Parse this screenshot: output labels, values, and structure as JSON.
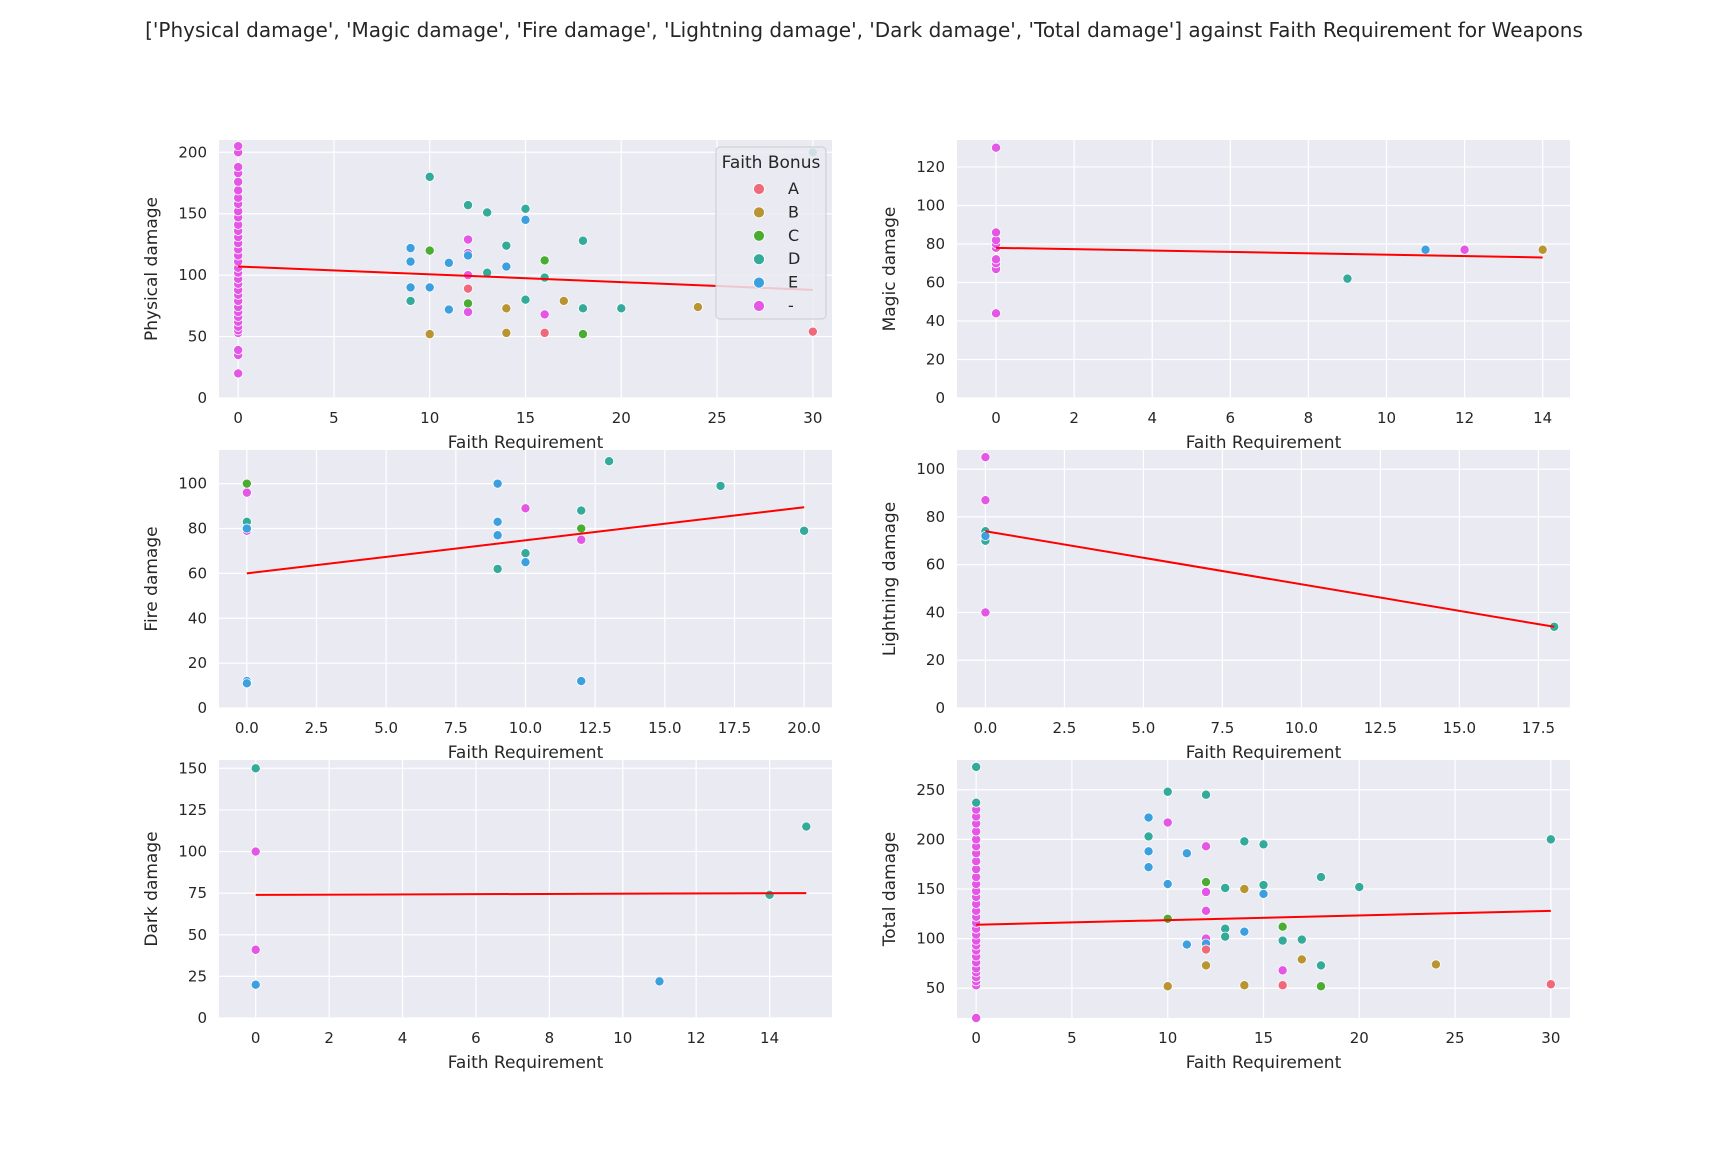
{
  "figure": {
    "title": "['Physical damage', 'Magic damage', 'Fire damage', 'Lightning damage', 'Dark damage', 'Total damage'] against Faith Requirement for Weapons"
  },
  "legend": {
    "title": "Faith Bonus",
    "entries": [
      {
        "label": "A",
        "color": "#f0697a"
      },
      {
        "label": "B",
        "color": "#b89433"
      },
      {
        "label": "C",
        "color": "#4aad32"
      },
      {
        "label": "D",
        "color": "#33aa9a"
      },
      {
        "label": "E",
        "color": "#3b9fe0"
      },
      {
        "label": "-",
        "color": "#e356e6"
      }
    ]
  },
  "chart_data": [
    {
      "type": "scatter",
      "xlabel": "Faith Requirement",
      "ylabel": "Physical damage",
      "xlim": [
        -1,
        31
      ],
      "ylim": [
        0,
        210
      ],
      "xticks": [
        0,
        5,
        10,
        15,
        20,
        25,
        30
      ],
      "yticks": [
        0,
        50,
        100,
        150,
        200
      ],
      "grid": true,
      "legend_position": "upper right",
      "trend_line": [
        [
          0,
          107
        ],
        [
          30,
          88
        ]
      ],
      "points": {
        "-": [
          [
            0,
            20
          ],
          [
            0,
            35
          ],
          [
            0,
            39
          ],
          [
            0,
            53
          ],
          [
            0,
            55
          ],
          [
            0,
            58
          ],
          [
            0,
            62
          ],
          [
            0,
            66
          ],
          [
            0,
            70
          ],
          [
            0,
            74
          ],
          [
            0,
            79
          ],
          [
            0,
            84
          ],
          [
            0,
            88
          ],
          [
            0,
            93
          ],
          [
            0,
            97
          ],
          [
            0,
            102
          ],
          [
            0,
            106
          ],
          [
            0,
            111
          ],
          [
            0,
            116
          ],
          [
            0,
            121
          ],
          [
            0,
            126
          ],
          [
            0,
            131
          ],
          [
            0,
            136
          ],
          [
            0,
            141
          ],
          [
            0,
            147
          ],
          [
            0,
            152
          ],
          [
            0,
            158
          ],
          [
            0,
            163
          ],
          [
            0,
            169
          ],
          [
            0,
            176
          ],
          [
            0,
            183
          ],
          [
            0,
            188
          ],
          [
            0,
            200
          ],
          [
            0,
            205
          ],
          [
            12,
            129
          ],
          [
            12,
            118
          ],
          [
            12,
            100
          ],
          [
            12,
            70
          ],
          [
            16,
            68
          ]
        ],
        "A": [
          [
            12,
            89
          ],
          [
            16,
            53
          ],
          [
            30,
            54
          ]
        ],
        "B": [
          [
            10,
            52
          ],
          [
            14,
            53
          ],
          [
            14,
            73
          ],
          [
            17,
            79
          ],
          [
            24,
            74
          ]
        ],
        "C": [
          [
            10,
            120
          ],
          [
            12,
            77
          ],
          [
            16,
            112
          ],
          [
            18,
            52
          ]
        ],
        "D": [
          [
            9,
            79
          ],
          [
            10,
            180
          ],
          [
            12,
            157
          ],
          [
            13,
            151
          ],
          [
            13,
            102
          ],
          [
            14,
            124
          ],
          [
            15,
            154
          ],
          [
            15,
            80
          ],
          [
            16,
            98
          ],
          [
            18,
            128
          ],
          [
            18,
            73
          ],
          [
            20,
            73
          ],
          [
            30,
            200
          ]
        ],
        "E": [
          [
            9,
            122
          ],
          [
            9,
            111
          ],
          [
            9,
            90
          ],
          [
            10,
            90
          ],
          [
            11,
            110
          ],
          [
            11,
            72
          ],
          [
            12,
            116
          ],
          [
            14,
            107
          ],
          [
            15,
            145
          ]
        ]
      }
    },
    {
      "type": "scatter",
      "xlabel": "Faith Requirement",
      "ylabel": "Magic damage",
      "xlim": [
        -1,
        14.7
      ],
      "ylim": [
        0,
        134
      ],
      "xticks": [
        0,
        2,
        4,
        6,
        8,
        10,
        12,
        14
      ],
      "yticks": [
        0,
        20,
        40,
        60,
        80,
        100,
        120
      ],
      "grid": true,
      "trend_line": [
        [
          0,
          78
        ],
        [
          14,
          73
        ]
      ],
      "points": {
        "-": [
          [
            0,
            44
          ],
          [
            0,
            67
          ],
          [
            0,
            70
          ],
          [
            0,
            72
          ],
          [
            0,
            78
          ],
          [
            0,
            80
          ],
          [
            0,
            82
          ],
          [
            0,
            86
          ],
          [
            0,
            130
          ],
          [
            12,
            77
          ]
        ],
        "B": [
          [
            14,
            77
          ]
        ],
        "D": [
          [
            9,
            62
          ]
        ],
        "E": [
          [
            11,
            77
          ]
        ]
      }
    },
    {
      "type": "scatter",
      "xlabel": "Faith Requirement",
      "ylabel": "Fire damage",
      "xlim": [
        -1,
        21
      ],
      "ylim": [
        0,
        115
      ],
      "xticks": [
        0.0,
        2.5,
        5.0,
        7.5,
        10.0,
        12.5,
        15.0,
        17.5,
        20.0
      ],
      "xtick_labels": [
        "0.0",
        "2.5",
        "5.0",
        "7.5",
        "10.0",
        "12.5",
        "15.0",
        "17.5",
        "20.0"
      ],
      "yticks": [
        0,
        20,
        40,
        60,
        80,
        100
      ],
      "grid": true,
      "trend_line": [
        [
          0,
          60
        ],
        [
          20,
          89.5
        ]
      ],
      "points": {
        "-": [
          [
            0,
            96
          ],
          [
            0,
            79
          ],
          [
            10,
            89
          ],
          [
            12,
            75
          ]
        ],
        "C": [
          [
            0,
            100
          ],
          [
            12,
            80
          ]
        ],
        "D": [
          [
            0,
            83
          ],
          [
            9,
            62
          ],
          [
            10,
            69
          ],
          [
            12,
            88
          ],
          [
            13,
            110
          ],
          [
            17,
            99
          ],
          [
            20,
            79
          ]
        ],
        "E": [
          [
            0,
            80
          ],
          [
            0,
            12
          ],
          [
            0,
            11
          ],
          [
            9,
            100
          ],
          [
            9,
            83
          ],
          [
            9,
            77
          ],
          [
            10,
            65
          ],
          [
            12,
            12
          ]
        ]
      }
    },
    {
      "type": "scatter",
      "xlabel": "Faith Requirement",
      "ylabel": "Lightning damage",
      "xlim": [
        -0.9,
        18.5
      ],
      "ylim": [
        0,
        108
      ],
      "xticks": [
        0.0,
        2.5,
        5.0,
        7.5,
        10.0,
        12.5,
        15.0,
        17.5
      ],
      "xtick_labels": [
        "0.0",
        "2.5",
        "5.0",
        "7.5",
        "10.0",
        "12.5",
        "15.0",
        "17.5"
      ],
      "yticks": [
        0,
        20,
        40,
        60,
        80,
        100
      ],
      "grid": true,
      "trend_line": [
        [
          0,
          74
        ],
        [
          18,
          34
        ]
      ],
      "points": {
        "-": [
          [
            0,
            105
          ],
          [
            0,
            87
          ],
          [
            0,
            71
          ],
          [
            0,
            40
          ]
        ],
        "D": [
          [
            0,
            74
          ],
          [
            0,
            70
          ],
          [
            18,
            34
          ]
        ],
        "E": [
          [
            0,
            72
          ]
        ]
      }
    },
    {
      "type": "scatter",
      "xlabel": "Faith Requirement",
      "ylabel": "Dark damage",
      "xlim": [
        -1,
        15.7
      ],
      "ylim": [
        0,
        155
      ],
      "xticks": [
        0,
        2,
        4,
        6,
        8,
        10,
        12,
        14
      ],
      "yticks": [
        0,
        25,
        50,
        75,
        100,
        125,
        150
      ],
      "grid": true,
      "trend_line": [
        [
          0,
          74
        ],
        [
          15,
          75
        ]
      ],
      "points": {
        "-": [
          [
            0,
            100
          ],
          [
            0,
            41
          ]
        ],
        "D": [
          [
            0,
            150
          ],
          [
            14,
            74
          ],
          [
            15,
            115
          ]
        ],
        "E": [
          [
            0,
            20
          ],
          [
            11,
            22
          ]
        ]
      }
    },
    {
      "type": "scatter",
      "xlabel": "Faith Requirement",
      "ylabel": "Total damage",
      "xlim": [
        -1,
        31
      ],
      "ylim": [
        20,
        280
      ],
      "xticks": [
        0,
        5,
        10,
        15,
        20,
        25,
        30
      ],
      "yticks": [
        50,
        100,
        150,
        200,
        250
      ],
      "grid": true,
      "trend_line": [
        [
          0,
          114
        ],
        [
          30,
          128
        ]
      ],
      "points": {
        "-": [
          [
            0,
            20
          ],
          [
            0,
            53
          ],
          [
            0,
            57
          ],
          [
            0,
            61
          ],
          [
            0,
            66
          ],
          [
            0,
            70
          ],
          [
            0,
            76
          ],
          [
            0,
            82
          ],
          [
            0,
            88
          ],
          [
            0,
            93
          ],
          [
            0,
            98
          ],
          [
            0,
            104
          ],
          [
            0,
            110
          ],
          [
            0,
            116
          ],
          [
            0,
            122
          ],
          [
            0,
            128
          ],
          [
            0,
            135
          ],
          [
            0,
            142
          ],
          [
            0,
            148
          ],
          [
            0,
            155
          ],
          [
            0,
            162
          ],
          [
            0,
            170
          ],
          [
            0,
            178
          ],
          [
            0,
            186
          ],
          [
            0,
            193
          ],
          [
            0,
            200
          ],
          [
            0,
            208
          ],
          [
            0,
            216
          ],
          [
            0,
            223
          ],
          [
            0,
            230
          ],
          [
            10,
            217
          ],
          [
            12,
            193
          ],
          [
            12,
            147
          ],
          [
            12,
            128
          ],
          [
            12,
            100
          ],
          [
            16,
            68
          ]
        ],
        "A": [
          [
            12,
            89
          ],
          [
            16,
            53
          ],
          [
            30,
            54
          ]
        ],
        "B": [
          [
            10,
            52
          ],
          [
            12,
            73
          ],
          [
            14,
            53
          ],
          [
            14,
            150
          ],
          [
            17,
            79
          ],
          [
            24,
            74
          ]
        ],
        "C": [
          [
            10,
            120
          ],
          [
            12,
            157
          ],
          [
            16,
            112
          ],
          [
            18,
            52
          ]
        ],
        "D": [
          [
            0,
            273
          ],
          [
            0,
            237
          ],
          [
            9,
            203
          ],
          [
            10,
            248
          ],
          [
            12,
            245
          ],
          [
            13,
            151
          ],
          [
            13,
            110
          ],
          [
            13,
            102
          ],
          [
            14,
            198
          ],
          [
            15,
            195
          ],
          [
            15,
            154
          ],
          [
            16,
            98
          ],
          [
            17,
            99
          ],
          [
            18,
            162
          ],
          [
            18,
            73
          ],
          [
            20,
            152
          ],
          [
            30,
            200
          ]
        ],
        "E": [
          [
            9,
            222
          ],
          [
            9,
            188
          ],
          [
            9,
            172
          ],
          [
            10,
            155
          ],
          [
            11,
            186
          ],
          [
            11,
            94
          ],
          [
            12,
            95
          ],
          [
            14,
            107
          ],
          [
            15,
            145
          ]
        ]
      }
    }
  ]
}
